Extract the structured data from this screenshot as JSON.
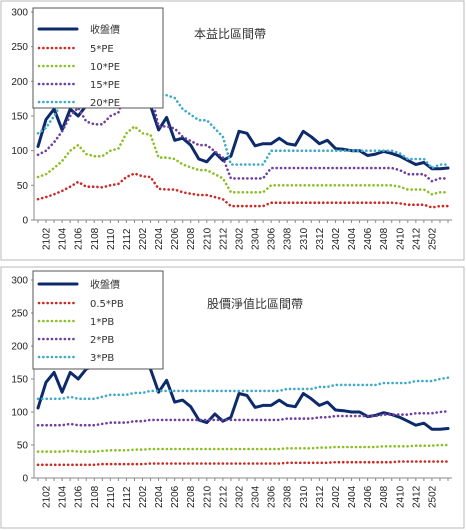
{
  "chart_data": [
    {
      "type": "line",
      "title": "本益比區間帶",
      "ylim": [
        0,
        300
      ],
      "yticks": [
        0,
        50,
        100,
        150,
        200,
        250,
        300
      ],
      "xticks": [
        "2102",
        "2104",
        "2106",
        "2108",
        "2110",
        "2112",
        "2202",
        "2204",
        "2206",
        "2208",
        "2210",
        "2212",
        "2302",
        "2304",
        "2306",
        "2308",
        "2310",
        "2312",
        "2402",
        "2404",
        "2406",
        "2408",
        "2410",
        "2412",
        "2502"
      ],
      "grid": false,
      "legend_position": "top-left",
      "series": [
        {
          "name": "收盤價",
          "color": "#0d2a6b",
          "style": "solid",
          "values": [
            106,
            145,
            160,
            130,
            160,
            150,
            165,
            170,
            175,
            210,
            205,
            180,
            190,
            185,
            165,
            130,
            148,
            115,
            118,
            108,
            88,
            84,
            97,
            86,
            92,
            128,
            125,
            107,
            110,
            110,
            118,
            110,
            108,
            128,
            120,
            110,
            115,
            103,
            102,
            100,
            100,
            93,
            95,
            99,
            96,
            92,
            86,
            80,
            83,
            74,
            74,
            75
          ]
        },
        {
          "name": "5*PE",
          "color": "#cc2b24",
          "style": "dotted",
          "values": [
            30,
            33,
            37,
            42,
            48,
            55,
            48,
            48,
            47,
            50,
            52,
            62,
            67,
            63,
            62,
            45,
            44,
            44,
            40,
            38,
            36,
            36,
            33,
            30,
            20,
            20,
            20,
            20,
            20,
            25,
            25,
            25,
            25,
            25,
            25,
            25,
            25,
            25,
            25,
            25,
            25,
            25,
            25,
            25,
            25,
            24,
            22,
            22,
            22,
            18,
            20,
            20
          ]
        },
        {
          "name": "10*PE",
          "color": "#8cbf26",
          "style": "dotted",
          "values": [
            62,
            66,
            75,
            85,
            100,
            108,
            95,
            92,
            92,
            100,
            103,
            125,
            135,
            125,
            123,
            90,
            90,
            88,
            80,
            76,
            72,
            72,
            66,
            60,
            40,
            40,
            40,
            40,
            40,
            50,
            50,
            50,
            50,
            50,
            50,
            50,
            50,
            50,
            50,
            50,
            50,
            50,
            50,
            50,
            50,
            48,
            44,
            44,
            44,
            37,
            40,
            40
          ]
        },
        {
          "name": "15*PE",
          "color": "#6f3fa0",
          "style": "dotted",
          "values": [
            94,
            100,
            112,
            128,
            150,
            162,
            142,
            138,
            138,
            150,
            155,
            188,
            202,
            188,
            185,
            135,
            135,
            132,
            120,
            114,
            108,
            108,
            99,
            90,
            60,
            60,
            60,
            60,
            60,
            75,
            75,
            75,
            75,
            75,
            75,
            75,
            75,
            75,
            75,
            75,
            75,
            75,
            75,
            75,
            75,
            72,
            66,
            66,
            66,
            56,
            60,
            60
          ]
        },
        {
          "name": "20*PE",
          "color": "#3fa9c9",
          "style": "dotted",
          "values": [
            125,
            133,
            150,
            170,
            200,
            216,
            190,
            184,
            184,
            200,
            206,
            250,
            270,
            250,
            246,
            180,
            180,
            176,
            160,
            152,
            144,
            144,
            132,
            120,
            80,
            80,
            80,
            80,
            80,
            100,
            100,
            100,
            100,
            100,
            100,
            100,
            100,
            100,
            100,
            100,
            100,
            100,
            100,
            100,
            100,
            96,
            88,
            88,
            88,
            75,
            80,
            80
          ]
        }
      ]
    },
    {
      "type": "line",
      "title": "股價淨值比區間帶",
      "ylim": [
        0,
        300
      ],
      "yticks": [
        0,
        50,
        100,
        150,
        200,
        250,
        300
      ],
      "xticks": [
        "2102",
        "2104",
        "2106",
        "2108",
        "2110",
        "2112",
        "2202",
        "2204",
        "2206",
        "2208",
        "2210",
        "2212",
        "2302",
        "2304",
        "2306",
        "2308",
        "2310",
        "2312",
        "2402",
        "2404",
        "2406",
        "2408",
        "2410",
        "2412",
        "2502"
      ],
      "grid": false,
      "legend_position": "top-left",
      "series": [
        {
          "name": "收盤價",
          "color": "#0d2a6b",
          "style": "solid",
          "values": [
            106,
            145,
            160,
            130,
            160,
            150,
            165,
            170,
            175,
            210,
            205,
            180,
            190,
            185,
            165,
            130,
            148,
            115,
            118,
            108,
            88,
            84,
            97,
            86,
            92,
            128,
            125,
            107,
            110,
            110,
            118,
            110,
            108,
            128,
            120,
            110,
            115,
            103,
            102,
            100,
            100,
            93,
            95,
            99,
            96,
            92,
            86,
            80,
            83,
            74,
            74,
            75
          ]
        },
        {
          "name": "0.5*PB",
          "color": "#cc2b24",
          "style": "dotted",
          "values": [
            20,
            20,
            20,
            20,
            20,
            20,
            20,
            20,
            21,
            21,
            21,
            21,
            21,
            21,
            22,
            22,
            22,
            22,
            22,
            22,
            22,
            22,
            22,
            22,
            22,
            22,
            22,
            22,
            22,
            22,
            22,
            23,
            23,
            23,
            23,
            23,
            23,
            24,
            24,
            24,
            24,
            24,
            24,
            24,
            24,
            25,
            25,
            25,
            25,
            25,
            25,
            25
          ]
        },
        {
          "name": "1*PB",
          "color": "#8cbf26",
          "style": "dotted",
          "values": [
            40,
            40,
            40,
            40,
            41,
            40,
            40,
            40,
            41,
            42,
            42,
            42,
            43,
            43,
            44,
            44,
            44,
            44,
            44,
            44,
            44,
            44,
            44,
            44,
            44,
            44,
            44,
            44,
            44,
            44,
            44,
            45,
            45,
            45,
            45,
            46,
            46,
            47,
            47,
            47,
            47,
            47,
            47,
            48,
            48,
            48,
            48,
            49,
            49,
            49,
            50,
            50
          ]
        },
        {
          "name": "2*PB",
          "color": "#6f3fa0",
          "style": "dotted",
          "values": [
            80,
            80,
            80,
            80,
            82,
            80,
            80,
            80,
            82,
            84,
            84,
            84,
            86,
            86,
            88,
            88,
            88,
            88,
            88,
            88,
            88,
            88,
            88,
            88,
            88,
            88,
            88,
            88,
            88,
            88,
            88,
            90,
            90,
            90,
            90,
            92,
            92,
            94,
            94,
            94,
            94,
            94,
            94,
            96,
            96,
            96,
            96,
            98,
            98,
            98,
            100,
            101
          ]
        },
        {
          "name": "3*PB",
          "color": "#3fa9c9",
          "style": "dotted",
          "values": [
            120,
            120,
            120,
            120,
            123,
            120,
            120,
            120,
            123,
            126,
            126,
            126,
            129,
            129,
            132,
            132,
            132,
            132,
            132,
            132,
            132,
            132,
            132,
            132,
            132,
            132,
            132,
            132,
            132,
            132,
            132,
            135,
            135,
            135,
            135,
            138,
            138,
            141,
            141,
            141,
            141,
            141,
            141,
            144,
            144,
            144,
            144,
            147,
            147,
            147,
            150,
            152
          ]
        }
      ]
    }
  ]
}
